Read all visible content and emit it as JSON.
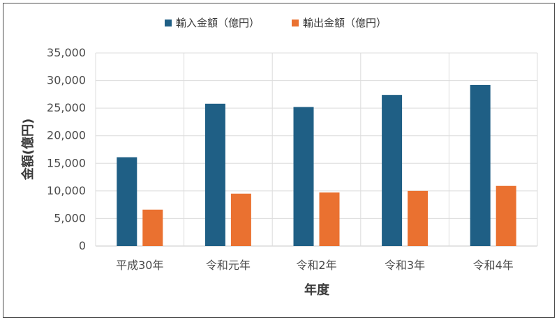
{
  "chart_data": {
    "type": "bar",
    "categories": [
      "平成30年",
      "令和元年",
      "令和2年",
      "令和3年",
      "令和4年"
    ],
    "series": [
      {
        "name": "輸入金額（億円）",
        "color": "#1f5f85",
        "values": [
          16100,
          25800,
          25200,
          27400,
          29200
        ]
      },
      {
        "name": "輸出金額（億円）",
        "color": "#ea7130",
        "values": [
          6600,
          9500,
          9700,
          10000,
          10900
        ]
      }
    ],
    "xlabel": "年度",
    "ylabel": "金額(億円)",
    "ylim": [
      0,
      35000
    ],
    "yticks": [
      "0",
      "5,000",
      "10,000",
      "15,000",
      "20,000",
      "25,000",
      "30,000",
      "35,000"
    ],
    "ytick_values": [
      0,
      5000,
      10000,
      15000,
      20000,
      25000,
      30000,
      35000
    ],
    "legend_position": "top-center",
    "grid": true
  }
}
